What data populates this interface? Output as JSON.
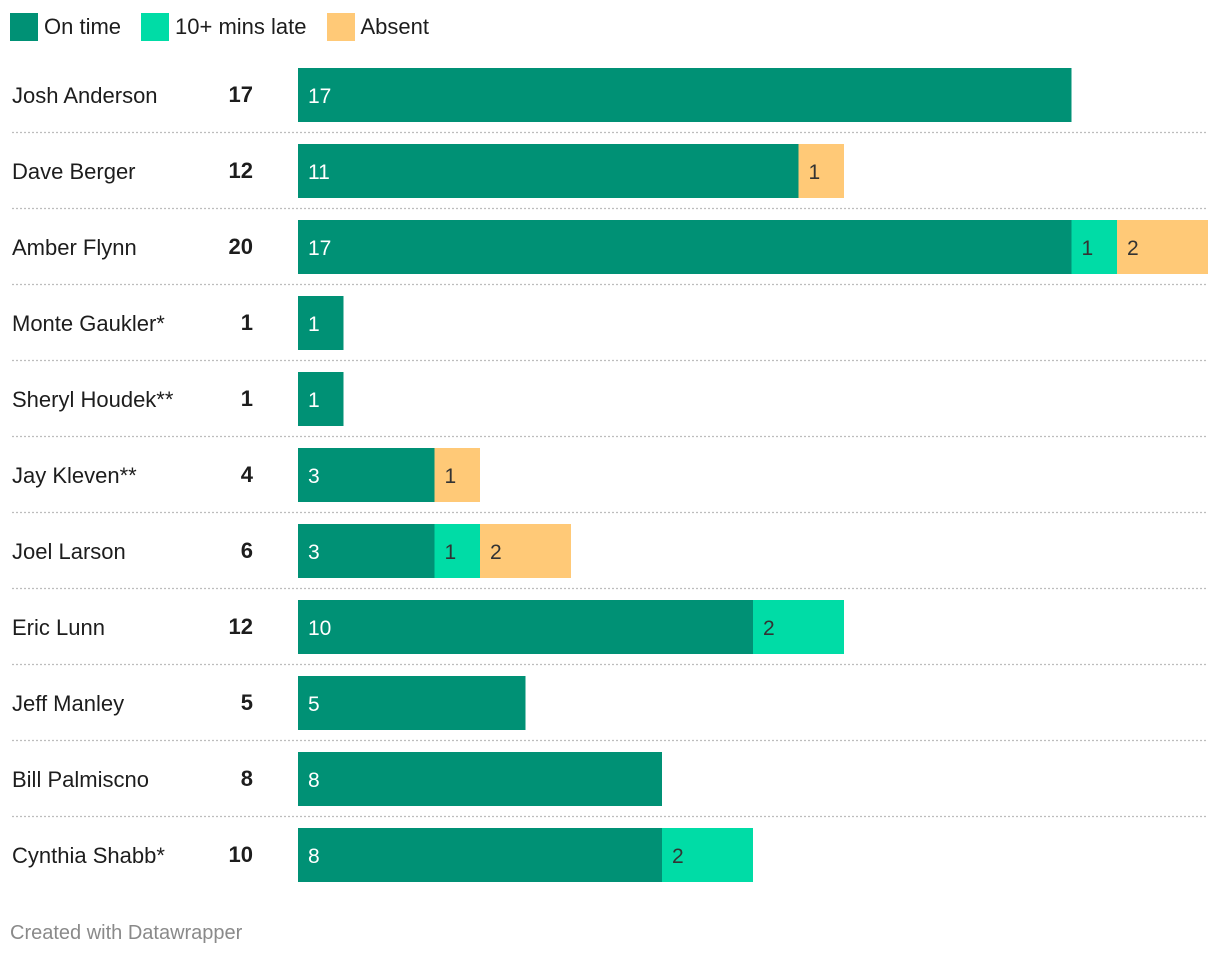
{
  "chart_data": {
    "type": "bar",
    "orientation": "horizontal",
    "stacked": true,
    "title": "",
    "xlabel": "",
    "ylabel": "",
    "xlim": [
      0,
      20
    ],
    "grid": false,
    "legend": "top-left",
    "colors": {
      "on_time": "#009175",
      "late": "#00dca6",
      "absent": "#ffc977"
    },
    "label_colors": {
      "on_time": "#ffffff",
      "late": "#333333",
      "absent": "#333333"
    },
    "series": [
      {
        "key": "on_time",
        "name": "On time"
      },
      {
        "key": "late",
        "name": "10+ mins late"
      },
      {
        "key": "absent",
        "name": "Absent"
      }
    ],
    "categories": [
      "Josh Anderson",
      "Dave Berger",
      "Amber Flynn",
      "Monte Gaukler*",
      "Sheryl Houdek**",
      "Jay Kleven**",
      "Joel Larson",
      "Eric Lunn",
      "Jeff Manley",
      "Bill Palmiscno",
      "Cynthia Shabb*"
    ],
    "rows": [
      {
        "name": "Josh Anderson",
        "total": "17",
        "on_time": 17,
        "late": 0,
        "absent": 0
      },
      {
        "name": "Dave Berger",
        "total": "12",
        "on_time": 11,
        "late": 0,
        "absent": 1
      },
      {
        "name": "Amber Flynn",
        "total": "20",
        "on_time": 17,
        "late": 1,
        "absent": 2
      },
      {
        "name": "Monte Gaukler*",
        "total": "1",
        "on_time": 1,
        "late": 0,
        "absent": 0
      },
      {
        "name": "Sheryl Houdek**",
        "total": "1",
        "on_time": 1,
        "late": 0,
        "absent": 0
      },
      {
        "name": "Jay Kleven**",
        "total": "4",
        "on_time": 3,
        "late": 0,
        "absent": 1
      },
      {
        "name": "Joel Larson",
        "total": "6",
        "on_time": 3,
        "late": 1,
        "absent": 2
      },
      {
        "name": "Eric Lunn",
        "total": "12",
        "on_time": 10,
        "late": 2,
        "absent": 0
      },
      {
        "name": "Jeff Manley",
        "total": "5",
        "on_time": 5,
        "late": 0,
        "absent": 0
      },
      {
        "name": "Bill Palmiscno",
        "total": "8",
        "on_time": 8,
        "late": 0,
        "absent": 0
      },
      {
        "name": "Cynthia Shabb*",
        "total": "10",
        "on_time": 8,
        "late": 2,
        "absent": 0
      }
    ]
  },
  "footer": {
    "credit": "Created with Datawrapper"
  }
}
